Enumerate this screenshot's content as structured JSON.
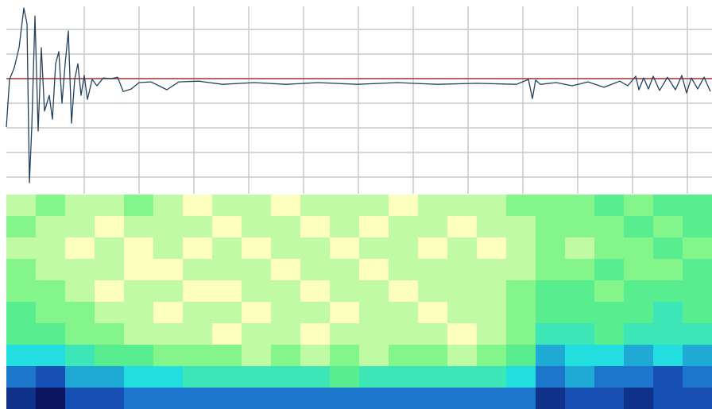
{
  "chart_data": [
    {
      "type": "line",
      "color": "#23405c",
      "grid": true,
      "xlim": [
        0,
        888
      ],
      "ylim": [
        -4.68,
        2.94
      ],
      "xticks": [
        98,
        167,
        236,
        305,
        374,
        443,
        512,
        581,
        650,
        719,
        788,
        857
      ],
      "yticks": [
        -4,
        -3,
        -2,
        -1,
        0,
        1,
        2
      ],
      "reference_line": {
        "value": 0,
        "color": "#a83a3a"
      },
      "x": [
        0,
        4,
        10,
        16,
        22,
        26,
        29,
        32,
        36,
        40,
        44,
        48,
        54,
        58,
        62,
        66,
        70,
        74,
        78,
        82,
        86,
        90,
        94,
        98,
        102,
        108,
        114,
        122,
        132,
        140,
        147,
        157,
        167,
        182,
        202,
        217,
        242,
        272,
        312,
        352,
        392,
        442,
        492,
        542,
        592,
        642,
        657,
        662,
        666,
        672,
        692,
        712,
        732,
        752,
        772,
        782,
        792,
        796,
        802,
        808,
        814,
        822,
        832,
        842,
        850,
        856,
        862,
        870,
        878,
        886
      ],
      "values": [
        -1.97,
        -0.03,
        0.45,
        1.26,
        2.87,
        2.23,
        -4.23,
        -1.97,
        2.55,
        -2.13,
        1.26,
        -1.32,
        -0.68,
        -1.65,
        0.61,
        1.1,
        -1.0,
        0.61,
        1.94,
        -1.81,
        -0.03,
        0.61,
        -0.68,
        0.13,
        -0.84,
        -0.03,
        -0.29,
        0.03,
        0,
        0.06,
        -0.52,
        -0.42,
        -0.16,
        -0.13,
        -0.45,
        -0.13,
        -0.1,
        -0.23,
        -0.16,
        -0.23,
        -0.16,
        -0.23,
        -0.16,
        -0.23,
        -0.19,
        -0.23,
        -0.03,
        -0.81,
        -0.06,
        -0.23,
        -0.16,
        -0.29,
        -0.13,
        -0.35,
        -0.1,
        -0.29,
        0.1,
        -0.45,
        0.03,
        -0.42,
        0.1,
        -0.48,
        0.06,
        -0.45,
        0.13,
        -0.58,
        0.03,
        -0.42,
        0.06,
        -0.52
      ]
    },
    {
      "type": "heatmap",
      "colormap": [
        "#0a1460",
        "#1a5cc8",
        "#22dede",
        "#66f27c",
        "#fdffc0"
      ],
      "values": [
        [
          0.9,
          0.8,
          0.9,
          0.9,
          0.8,
          0.9,
          1.0,
          0.9,
          0.9,
          1.0,
          0.9,
          0.9,
          0.9,
          1.0,
          0.9,
          0.9,
          0.9,
          0.8,
          0.8,
          0.8,
          0.7,
          0.8,
          0.7,
          0.7
        ],
        [
          0.8,
          0.9,
          0.9,
          1.0,
          0.9,
          0.9,
          0.9,
          1.0,
          0.9,
          0.9,
          1.0,
          0.9,
          1.0,
          0.9,
          0.9,
          1.0,
          0.9,
          0.9,
          0.8,
          0.8,
          0.8,
          0.7,
          0.8,
          0.7
        ],
        [
          0.9,
          0.9,
          1.0,
          0.9,
          1.0,
          0.9,
          1.0,
          0.9,
          1.0,
          0.9,
          0.9,
          1.0,
          0.9,
          0.9,
          1.0,
          0.9,
          1.0,
          0.9,
          0.8,
          0.9,
          0.8,
          0.8,
          0.7,
          0.8
        ],
        [
          0.8,
          0.9,
          0.9,
          0.9,
          1.0,
          1.0,
          0.9,
          0.9,
          0.9,
          1.0,
          0.9,
          0.9,
          1.0,
          0.9,
          0.9,
          0.9,
          0.9,
          0.9,
          0.8,
          0.8,
          0.7,
          0.8,
          0.8,
          0.7
        ],
        [
          0.8,
          0.8,
          0.9,
          1.0,
          0.9,
          0.9,
          1.0,
          1.0,
          0.9,
          0.9,
          1.0,
          0.9,
          0.9,
          1.0,
          0.9,
          0.9,
          0.9,
          0.8,
          0.7,
          0.7,
          0.8,
          0.7,
          0.7,
          0.7
        ],
        [
          0.7,
          0.8,
          0.8,
          0.9,
          0.9,
          1.0,
          0.9,
          0.9,
          1.0,
          0.9,
          0.9,
          1.0,
          0.9,
          0.9,
          1.0,
          0.9,
          0.9,
          0.8,
          0.7,
          0.7,
          0.7,
          0.7,
          0.6,
          0.7
        ],
        [
          0.7,
          0.7,
          0.8,
          0.8,
          0.9,
          0.9,
          0.9,
          1.0,
          0.9,
          0.9,
          1.0,
          0.9,
          0.9,
          0.9,
          0.9,
          1.0,
          0.9,
          0.8,
          0.6,
          0.6,
          0.7,
          0.6,
          0.6,
          0.6
        ],
        [
          0.5,
          0.5,
          0.6,
          0.7,
          0.7,
          0.8,
          0.8,
          0.8,
          0.9,
          0.8,
          0.9,
          0.8,
          0.9,
          0.8,
          0.8,
          0.9,
          0.8,
          0.7,
          0.4,
          0.5,
          0.5,
          0.4,
          0.5,
          0.4
        ],
        [
          0.3,
          0.2,
          0.4,
          0.4,
          0.5,
          0.5,
          0.6,
          0.6,
          0.6,
          0.6,
          0.6,
          0.7,
          0.6,
          0.6,
          0.6,
          0.6,
          0.6,
          0.5,
          0.3,
          0.4,
          0.3,
          0.3,
          0.2,
          0.3
        ],
        [
          0.1,
          0.0,
          0.2,
          0.2,
          0.3,
          0.3,
          0.3,
          0.3,
          0.3,
          0.3,
          0.3,
          0.3,
          0.3,
          0.3,
          0.3,
          0.3,
          0.3,
          0.3,
          0.1,
          0.2,
          0.2,
          0.1,
          0.2,
          0.2
        ]
      ]
    }
  ]
}
